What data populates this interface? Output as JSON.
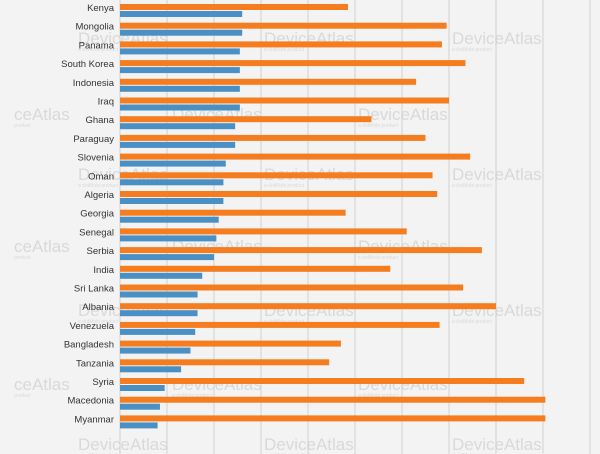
{
  "watermark": {
    "brand": "DeviceAtlas",
    "brand_partial": "ceAtlas",
    "tagline": "a dotMobi product",
    "tagline_partial": "product"
  },
  "colors": {
    "series_a": "#f57c1f",
    "series_b": "#4a90c4",
    "grid": "#d0d0d0",
    "background": "#f3f3f3",
    "label": "#333333"
  },
  "chart_data": {
    "type": "bar",
    "orientation": "horizontal",
    "grid": true,
    "title": "",
    "xlabel": "",
    "ylabel": "",
    "categories": [
      "Kenya",
      "Mongolia",
      "Panama",
      "South Korea",
      "Indonesia",
      "Iraq",
      "Ghana",
      "Paraguay",
      "Slovenia",
      "Oman",
      "Algeria",
      "Georgia",
      "Senegal",
      "Serbia",
      "India",
      "Sri Lanka",
      "Albania",
      "Venezuela",
      "Bangladesh",
      "Tanzania",
      "Syria",
      "Macedonia",
      "Myanmar"
    ],
    "series": [
      {
        "values": [
          48.5,
          69.5,
          68.5,
          73.5,
          63.0,
          70.0,
          53.5,
          65.0,
          74.5,
          66.5,
          67.5,
          48.0,
          61.0,
          77.0,
          57.5,
          73.0,
          80.0,
          68.0,
          47.0,
          44.5,
          86.0,
          90.5,
          90.5
        ]
      },
      {
        "values": [
          26.0,
          26.0,
          25.5,
          25.5,
          25.5,
          25.5,
          24.5,
          24.5,
          22.5,
          22.0,
          22.0,
          21.0,
          20.5,
          20.0,
          17.5,
          16.5,
          16.5,
          16.0,
          15.0,
          13.0,
          9.5,
          8.5,
          8.0
        ]
      }
    ],
    "xlim": [
      0,
      100
    ]
  }
}
